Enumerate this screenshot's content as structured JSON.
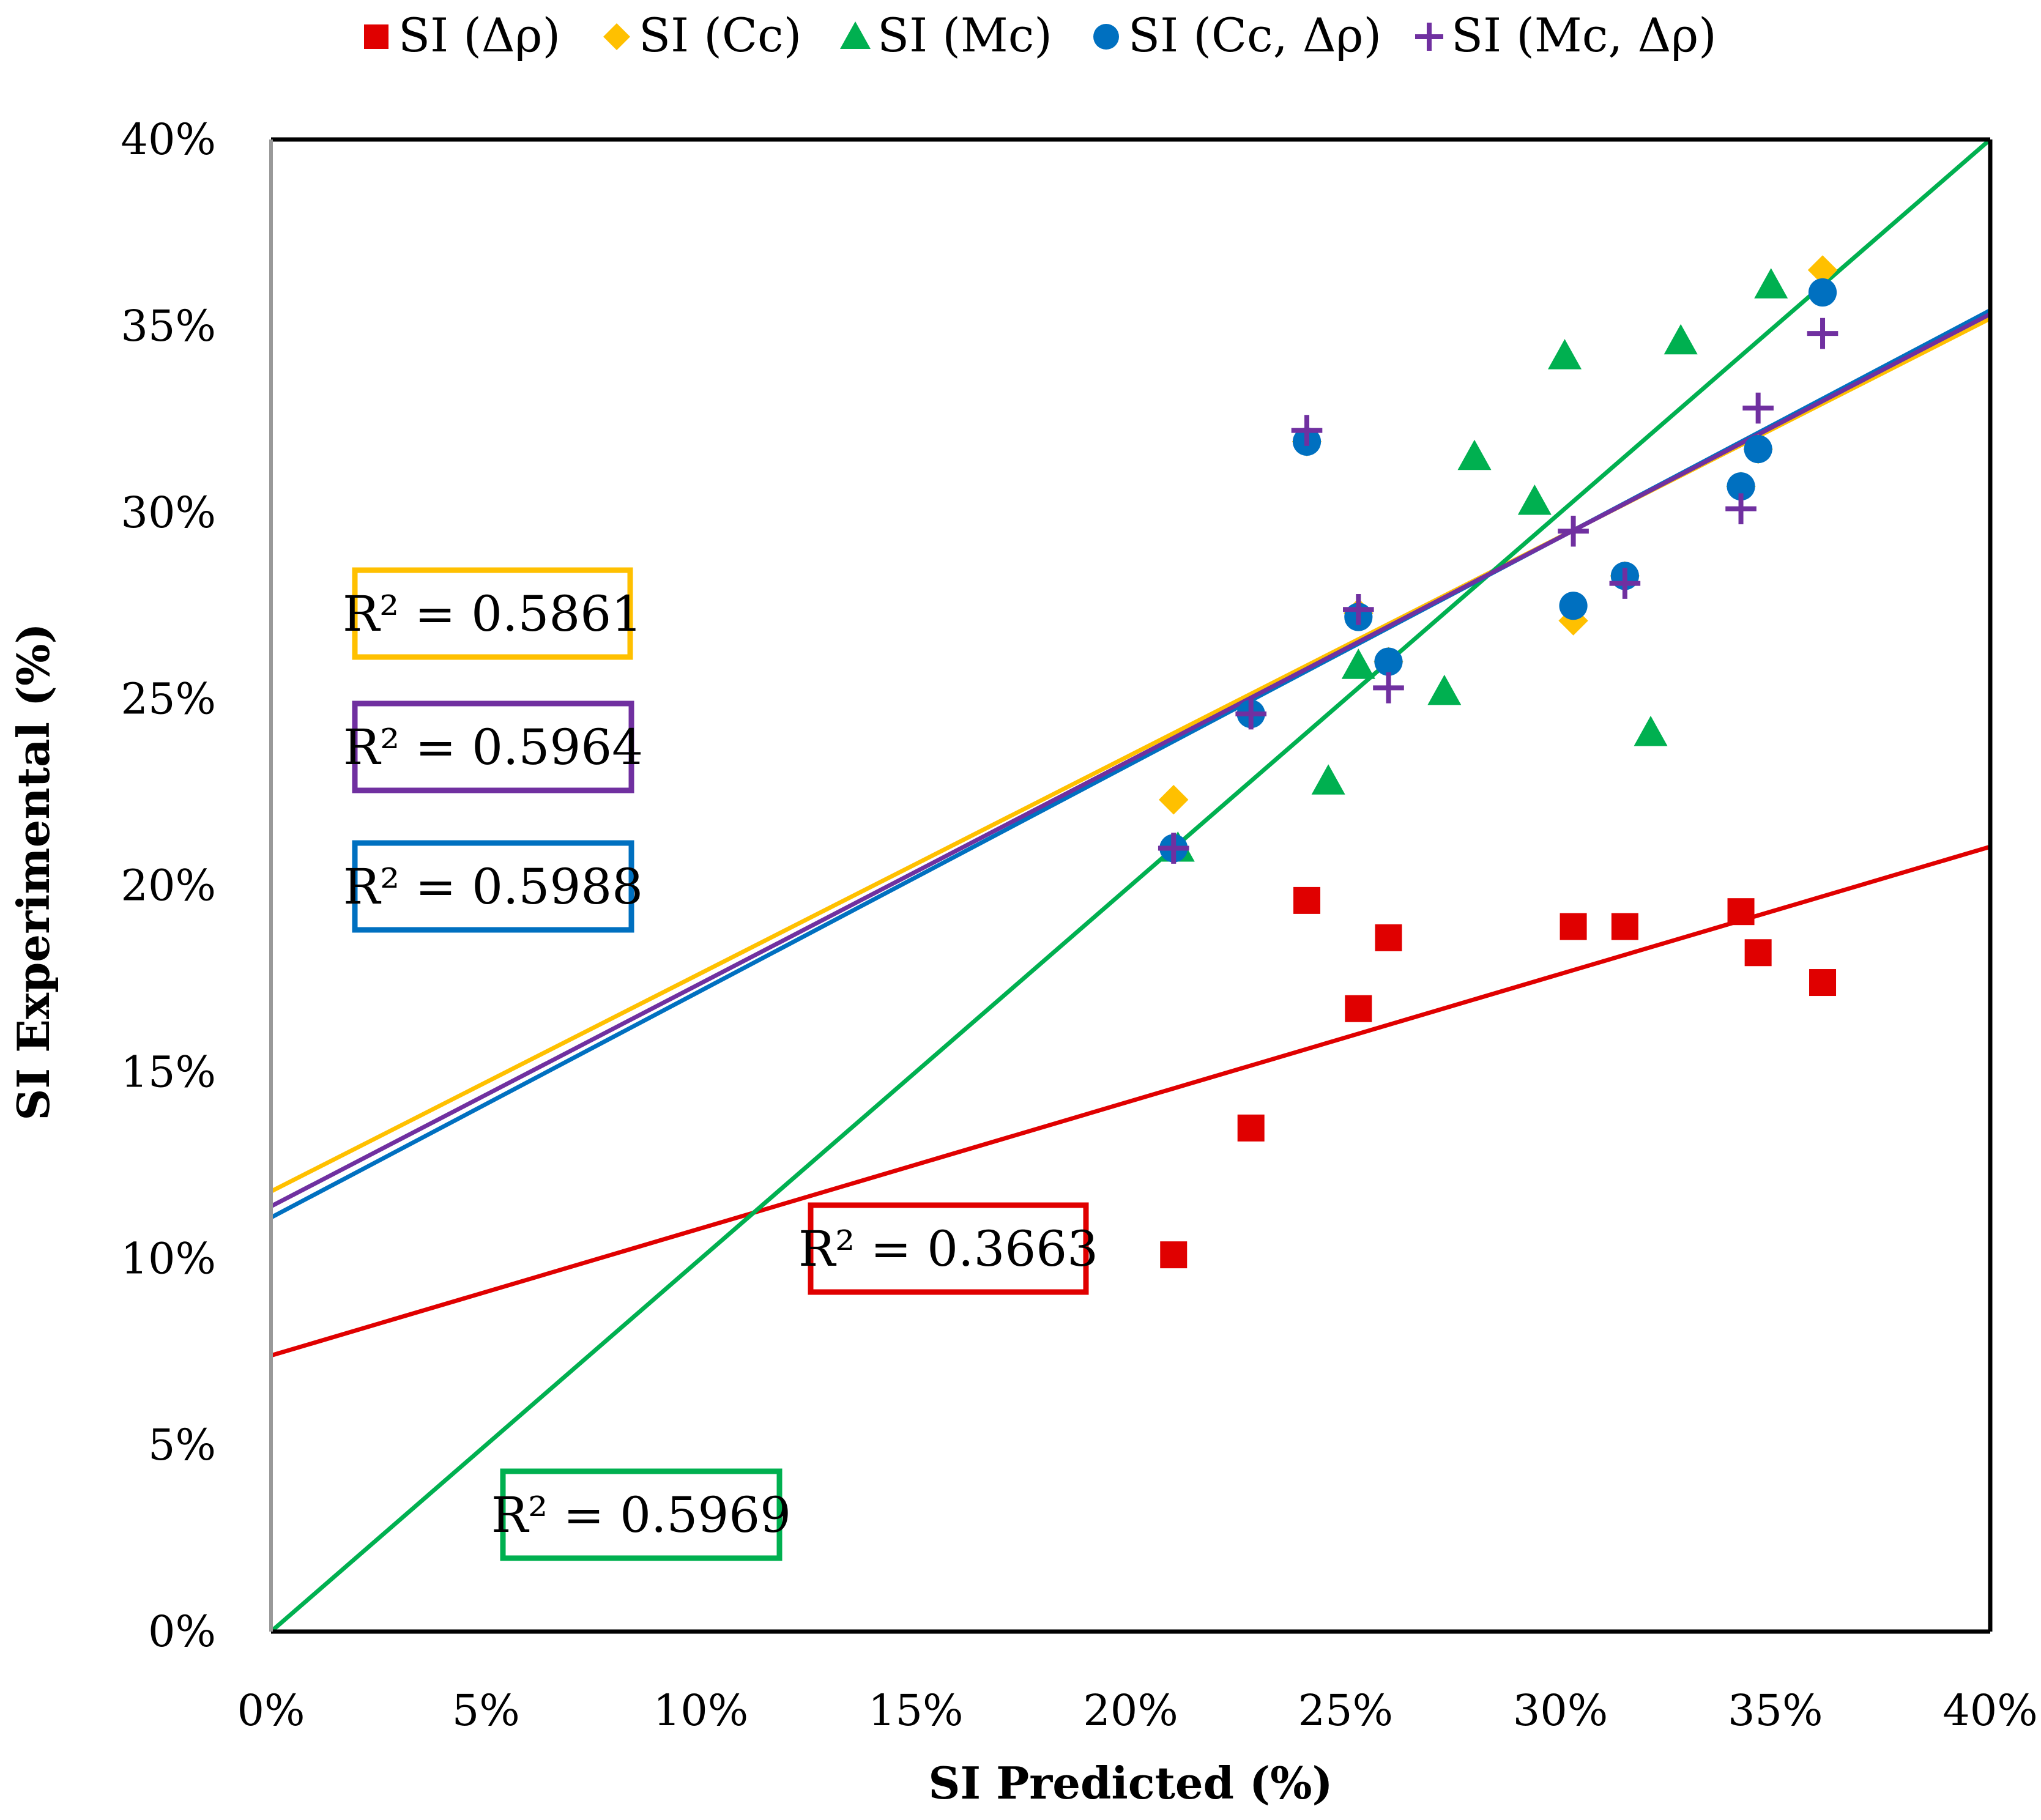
{
  "chart_data": {
    "type": "scatter",
    "title": "",
    "xlabel": "SI Predicted (%)",
    "ylabel": "SI Experimental (%)",
    "xlim": [
      0,
      40
    ],
    "ylim": [
      0,
      40
    ],
    "xticks": [
      "0%",
      "5%",
      "10%",
      "15%",
      "20%",
      "25%",
      "30%",
      "35%",
      "40%"
    ],
    "yticks": [
      "0%",
      "5%",
      "10%",
      "15%",
      "20%",
      "25%",
      "30%",
      "35%",
      "40%"
    ],
    "tick_values": [
      0,
      5,
      10,
      15,
      20,
      25,
      30,
      35,
      40
    ],
    "grid": false,
    "legend_position": "top",
    "series": [
      {
        "name": "SI (Δρ)",
        "marker": "square",
        "color": "#E00000",
        "points": [
          [
            21.0,
            10.1
          ],
          [
            22.8,
            13.5
          ],
          [
            24.1,
            19.6
          ],
          [
            25.3,
            16.7
          ],
          [
            26.0,
            18.6
          ],
          [
            30.3,
            18.9
          ],
          [
            31.5,
            18.9
          ],
          [
            34.2,
            19.3
          ],
          [
            34.6,
            18.2
          ],
          [
            36.1,
            17.4
          ]
        ],
        "trendline": {
          "slope": 0.341,
          "intercept": 7.4,
          "r2_label": "R² = 0.3663",
          "color": "#E00000"
        }
      },
      {
        "name": "SI (Cc)",
        "marker": "diamond",
        "color": "#FFC000",
        "points": [
          [
            21.0,
            22.3
          ],
          [
            22.8,
            24.6
          ],
          [
            24.1,
            31.9
          ],
          [
            25.3,
            27.3
          ],
          [
            26.0,
            26.0
          ],
          [
            30.3,
            27.1
          ],
          [
            31.5,
            28.3
          ],
          [
            34.2,
            30.7
          ],
          [
            34.6,
            31.7
          ],
          [
            36.1,
            36.5
          ]
        ],
        "trendline": {
          "slope": 0.585,
          "intercept": 11.8,
          "r2_label": "R² = 0.5861",
          "color": "#FFC000"
        }
      },
      {
        "name": "SI (Mc)",
        "marker": "triangle",
        "color": "#00B050",
        "points": [
          [
            21.1,
            21.0
          ],
          [
            24.6,
            22.8
          ],
          [
            25.3,
            25.9
          ],
          [
            27.3,
            25.2
          ],
          [
            28.0,
            31.5
          ],
          [
            29.4,
            30.3
          ],
          [
            30.1,
            34.2
          ],
          [
            32.1,
            24.1
          ],
          [
            32.8,
            34.6
          ],
          [
            34.9,
            36.1
          ]
        ],
        "trendline": {
          "slope": 1.0,
          "intercept": 0.0,
          "r2_label": "R² = 0.5969",
          "color": "#00B050"
        }
      },
      {
        "name": "SI (Cc, Δρ)",
        "marker": "circle",
        "color": "#0070C0",
        "points": [
          [
            21.0,
            21.0
          ],
          [
            22.8,
            24.6
          ],
          [
            24.1,
            31.9
          ],
          [
            25.3,
            27.2
          ],
          [
            26.0,
            26.0
          ],
          [
            30.3,
            27.5
          ],
          [
            31.5,
            28.3
          ],
          [
            34.2,
            30.7
          ],
          [
            34.6,
            31.7
          ],
          [
            36.1,
            35.9
          ]
        ],
        "trendline": {
          "slope": 0.608,
          "intercept": 11.1,
          "r2_label": "R² = 0.5988",
          "color": "#0070C0"
        }
      },
      {
        "name": "SI (Mc, Δρ)",
        "marker": "plus",
        "color": "#7030A0",
        "points": [
          [
            21.0,
            21.0
          ],
          [
            22.8,
            24.6
          ],
          [
            24.1,
            32.2
          ],
          [
            25.3,
            27.4
          ],
          [
            26.0,
            25.3
          ],
          [
            30.3,
            29.5
          ],
          [
            31.5,
            28.1
          ],
          [
            34.2,
            30.1
          ],
          [
            34.6,
            32.8
          ],
          [
            36.1,
            34.8
          ]
        ],
        "trendline": {
          "slope": 0.598,
          "intercept": 11.4,
          "r2_label": "R² = 0.5964",
          "color": "#7030A0"
        }
      }
    ]
  }
}
